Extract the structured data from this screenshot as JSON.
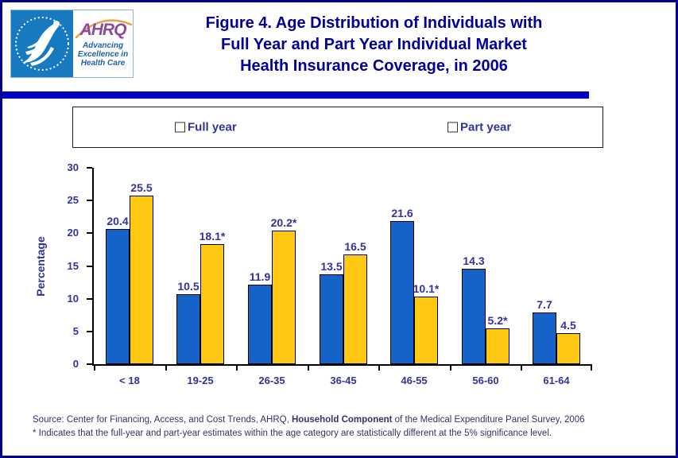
{
  "header": {
    "logo": {
      "ahrq_acronym": "AHRQ",
      "ahrq_tagline_lines": [
        "Advancing",
        "Excellence in",
        "Health Care"
      ]
    },
    "title_lines": [
      "Figure 4. Age Distribution of Individuals with",
      "Full Year and Part Year Individual Market",
      "Health Insurance Coverage, in 2006"
    ]
  },
  "legend": {
    "items": [
      {
        "label": "Full year",
        "color": "#1563c8"
      },
      {
        "label": "Part year",
        "color": "#ffc812"
      }
    ]
  },
  "chart_data": {
    "type": "bar",
    "categories": [
      "< 18",
      "19-25",
      "26-35",
      "36-45",
      "46-55",
      "56-60",
      "61-64"
    ],
    "series": [
      {
        "name": "Full year",
        "color": "#1563c8",
        "values": [
          20.4,
          10.5,
          11.9,
          13.5,
          21.6,
          14.3,
          7.7
        ],
        "value_labels": [
          "20.4",
          "10.5",
          "11.9",
          "13.5",
          "21.6",
          "14.3",
          "7.7"
        ]
      },
      {
        "name": "Part year",
        "color": "#ffc812",
        "values": [
          25.5,
          18.1,
          20.2,
          16.5,
          10.1,
          5.2,
          4.5
        ],
        "value_labels": [
          "25.5",
          "18.1*",
          "20.2*",
          "16.5",
          "10.1*",
          "5.2*",
          "4.5"
        ]
      }
    ],
    "xlabel": "",
    "ylabel": "Percentage",
    "ylim": [
      0,
      30
    ],
    "yticks": [
      0,
      5,
      10,
      15,
      20,
      25,
      30
    ],
    "grid": false,
    "legend_position": "top"
  },
  "footer": {
    "source_prefix": "Source: Center for Financing, Access, and Cost Trends, AHRQ, ",
    "source_bold": "Household Component",
    "source_suffix": " of the Medical Expenditure Panel Survey, 2006",
    "note": "* Indicates that the full-year and part-year estimates within the age category are statistically different at the 5% significance level."
  },
  "colors": {
    "outer_border": "#00008b",
    "title_text": "#000099",
    "chart_text": "#333399",
    "header_rule": "#0000c0",
    "footer_text": "#333366",
    "full_year_bar": "#1563c8",
    "part_year_bar": "#ffc812",
    "hhs_seal_background": "#1779c0",
    "ahrq_purple": "#8a4a9e",
    "ahrq_tagline_blue": "#1f5fad"
  }
}
